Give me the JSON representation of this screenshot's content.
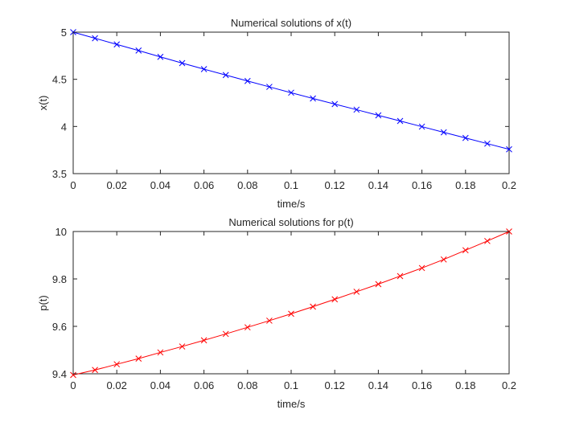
{
  "chart_data": [
    {
      "type": "line",
      "title": "Numerical solutions of x(t)",
      "xlabel": "time/s",
      "ylabel": "x(t)",
      "xlim": [
        0,
        0.2
      ],
      "ylim": [
        3.5,
        5
      ],
      "xticks": [
        0,
        0.02,
        0.04,
        0.06,
        0.08,
        0.1,
        0.12,
        0.14,
        0.16,
        0.18,
        0.2
      ],
      "xtick_labels": [
        "0",
        "0.02",
        "0.04",
        "0.06",
        "0.08",
        "0.1",
        "0.12",
        "0.14",
        "0.16",
        "0.18",
        "0.2"
      ],
      "yticks": [
        3.5,
        4,
        4.5,
        5
      ],
      "ytick_labels": [
        "3.5",
        "4",
        "4.5",
        "5"
      ],
      "grid": false,
      "series": [
        {
          "color": "#0000ff",
          "marker": "x",
          "x": [
            0,
            0.01,
            0.02,
            0.03,
            0.04,
            0.05,
            0.06,
            0.07,
            0.08,
            0.09,
            0.1,
            0.11,
            0.12,
            0.13,
            0.14,
            0.15,
            0.16,
            0.17,
            0.18,
            0.19,
            0.2
          ],
          "y": [
            5.0,
            4.935,
            4.87,
            4.805,
            4.738,
            4.672,
            4.608,
            4.545,
            4.482,
            4.42,
            4.358,
            4.297,
            4.237,
            4.178,
            4.118,
            4.058,
            3.998,
            3.938,
            3.878,
            3.818,
            3.758
          ]
        }
      ]
    },
    {
      "type": "line",
      "title": "Numerical solutions for p(t)",
      "xlabel": "time/s",
      "ylabel": "p(t)",
      "xlim": [
        0,
        0.2
      ],
      "ylim": [
        9.4,
        10
      ],
      "xticks": [
        0,
        0.02,
        0.04,
        0.06,
        0.08,
        0.1,
        0.12,
        0.14,
        0.16,
        0.18,
        0.2
      ],
      "xtick_labels": [
        "0",
        "0.02",
        "0.04",
        "0.06",
        "0.08",
        "0.1",
        "0.12",
        "0.14",
        "0.16",
        "0.18",
        "0.2"
      ],
      "yticks": [
        9.4,
        9.6,
        9.8,
        10
      ],
      "ytick_labels": [
        "9.4",
        "9.6",
        "9.8",
        "10"
      ],
      "grid": false,
      "series": [
        {
          "color": "#ff0000",
          "marker": "x",
          "x": [
            0,
            0.01,
            0.02,
            0.03,
            0.04,
            0.05,
            0.06,
            0.07,
            0.08,
            0.09,
            0.1,
            0.11,
            0.12,
            0.13,
            0.14,
            0.15,
            0.16,
            0.17,
            0.18,
            0.19,
            0.2
          ],
          "y": [
            9.395,
            9.416,
            9.44,
            9.464,
            9.49,
            9.515,
            9.541,
            9.568,
            9.596,
            9.624,
            9.653,
            9.683,
            9.714,
            9.746,
            9.778,
            9.812,
            9.846,
            9.882,
            9.921,
            9.96,
            10.0
          ]
        }
      ]
    }
  ]
}
